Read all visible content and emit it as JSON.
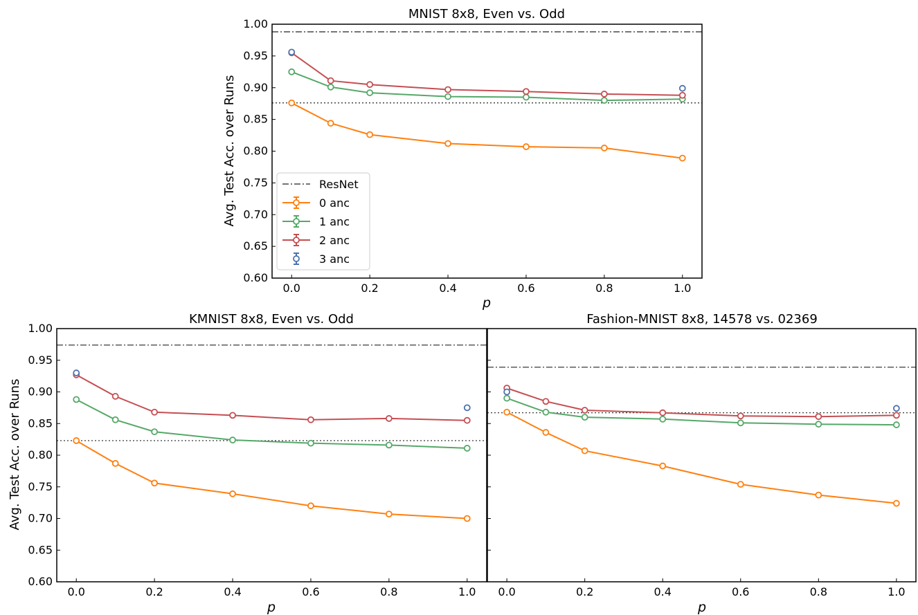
{
  "figure": {
    "ylabel": "Avg. Test Acc. over Runs",
    "xlabel": "p",
    "colors": {
      "ResNet": "#000000",
      "0 anc": "#ff7f0e",
      "1 anc": "#55a868",
      "2 anc": "#c44e52",
      "3 anc": "#4c72b0"
    }
  },
  "chart_data": [
    {
      "type": "line",
      "title": "MNIST 8x8, Even vs. Odd",
      "xlabel": "p",
      "ylabel": "Avg. Test Acc. over Runs",
      "ylim": [
        0.6,
        1.0
      ],
      "xlim": [
        -0.05,
        1.05
      ],
      "xticks": [
        "0.0",
        "0.2",
        "0.4",
        "0.6",
        "0.8",
        "1.0"
      ],
      "yticks": [
        "0.60",
        "0.65",
        "0.70",
        "0.75",
        "0.80",
        "0.85",
        "0.90",
        "0.95",
        "1.00"
      ],
      "legend": {
        "placement": "lower-left",
        "entries": [
          "ResNet",
          "0 anc",
          "1 anc",
          "2 anc",
          "3 anc"
        ]
      },
      "reference_lines": [
        {
          "name": "ResNet",
          "style": "dashdot",
          "y": 0.988
        },
        {
          "name": "",
          "style": "dotted",
          "y": 0.876
        }
      ],
      "x": [
        0.0,
        0.1,
        0.2,
        0.4,
        0.6,
        0.8,
        1.0
      ],
      "series": [
        {
          "name": "0 anc",
          "values": [
            0.876,
            0.844,
            0.826,
            0.812,
            0.807,
            0.805,
            0.789
          ]
        },
        {
          "name": "1 anc",
          "values": [
            0.925,
            0.901,
            0.892,
            0.886,
            0.885,
            0.88,
            0.882
          ]
        },
        {
          "name": "2 anc",
          "values": [
            0.955,
            0.911,
            0.905,
            0.897,
            0.894,
            0.89,
            0.888
          ]
        },
        {
          "name": "3 anc",
          "points": [
            [
              0.0,
              0.956
            ],
            [
              1.0,
              0.899
            ]
          ]
        }
      ]
    },
    {
      "type": "line",
      "title": "KMNIST 8x8, Even vs. Odd",
      "xlabel": "p",
      "ylabel": "Avg. Test Acc. over Runs",
      "ylim": [
        0.6,
        1.0
      ],
      "xlim": [
        -0.05,
        1.05
      ],
      "xticks": [
        "0.0",
        "0.2",
        "0.4",
        "0.6",
        "0.8",
        "1.0"
      ],
      "yticks": [
        "0.60",
        "0.65",
        "0.70",
        "0.75",
        "0.80",
        "0.85",
        "0.90",
        "0.95",
        "1.00"
      ],
      "reference_lines": [
        {
          "name": "ResNet",
          "style": "dashdot",
          "y": 0.974
        },
        {
          "name": "",
          "style": "dotted",
          "y": 0.823
        }
      ],
      "x": [
        0.0,
        0.1,
        0.2,
        0.4,
        0.6,
        0.8,
        1.0
      ],
      "series": [
        {
          "name": "0 anc",
          "values": [
            0.823,
            0.787,
            0.756,
            0.739,
            0.72,
            0.707,
            0.7
          ]
        },
        {
          "name": "1 anc",
          "values": [
            0.888,
            0.856,
            0.837,
            0.824,
            0.819,
            0.816,
            0.811
          ]
        },
        {
          "name": "2 anc",
          "values": [
            0.927,
            0.893,
            0.868,
            0.863,
            0.856,
            0.858,
            0.855
          ]
        },
        {
          "name": "3 anc",
          "points": [
            [
              0.0,
              0.93
            ],
            [
              1.0,
              0.875
            ]
          ]
        }
      ]
    },
    {
      "type": "line",
      "title": "Fashion-MNIST 8x8, 14578 vs. 02369",
      "xlabel": "p",
      "ylim": [
        0.6,
        1.0
      ],
      "xlim": [
        -0.05,
        1.05
      ],
      "xticks": [
        "0.0",
        "0.2",
        "0.4",
        "0.6",
        "0.8",
        "1.0"
      ],
      "yticks": [],
      "reference_lines": [
        {
          "name": "ResNet",
          "style": "dashdot",
          "y": 0.939
        },
        {
          "name": "",
          "style": "dotted",
          "y": 0.867
        }
      ],
      "x": [
        0.0,
        0.1,
        0.2,
        0.4,
        0.6,
        0.8,
        1.0
      ],
      "series": [
        {
          "name": "0 anc",
          "values": [
            0.868,
            0.836,
            0.807,
            0.783,
            0.754,
            0.737,
            0.724
          ]
        },
        {
          "name": "1 anc",
          "values": [
            0.89,
            0.868,
            0.86,
            0.857,
            0.851,
            0.849,
            0.848
          ]
        },
        {
          "name": "2 anc",
          "values": [
            0.906,
            0.885,
            0.871,
            0.867,
            0.862,
            0.861,
            0.863
          ]
        },
        {
          "name": "3 anc",
          "points": [
            [
              0.0,
              0.9
            ],
            [
              1.0,
              0.874
            ]
          ]
        }
      ]
    }
  ]
}
